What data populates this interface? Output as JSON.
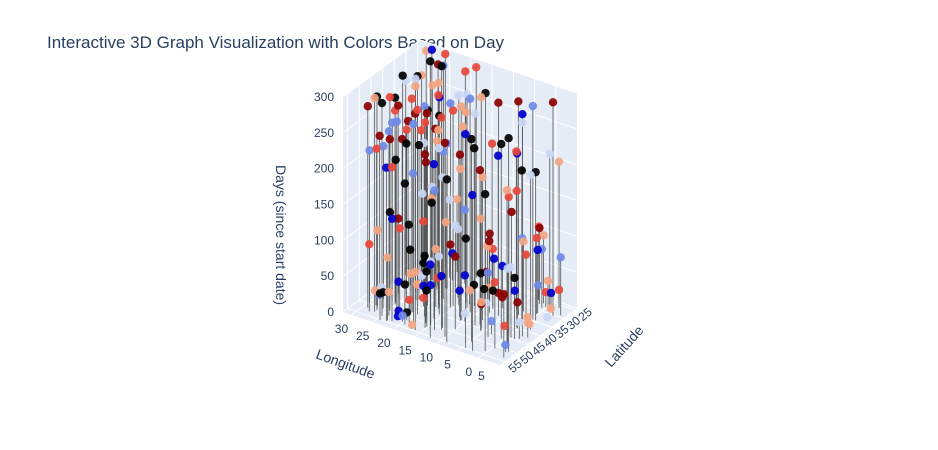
{
  "chart_data": {
    "type": "scatter3d",
    "title": "Interactive 3D Graph Visualization with Colors Based on Day",
    "xlabel": "Longitude",
    "ylabel": "Latitude",
    "zlabel": "Days (since start date)",
    "x_ticks": [
      "30",
      "25",
      "20",
      "15",
      "10",
      "5",
      "0",
      "5"
    ],
    "y_ticks": [
      "55",
      "50",
      "45",
      "40",
      "35",
      "30",
      "25"
    ],
    "z_ticks": [
      "0",
      "50",
      "100",
      "150",
      "200",
      "250",
      "300"
    ],
    "xlim": [
      -5,
      32
    ],
    "ylim": [
      24,
      57
    ],
    "zlim": [
      0,
      300
    ],
    "day_clusters": [
      20,
      100,
      210,
      290
    ],
    "colorscale": [
      "#000000",
      "#0000cc",
      "#6f8ae8",
      "#c9d6f5",
      "#f4a582",
      "#e8463a",
      "#8b0000"
    ],
    "drop_line_color": "#555555",
    "pane_color": "#e5ecf6",
    "grid_color": "#ffffff"
  }
}
